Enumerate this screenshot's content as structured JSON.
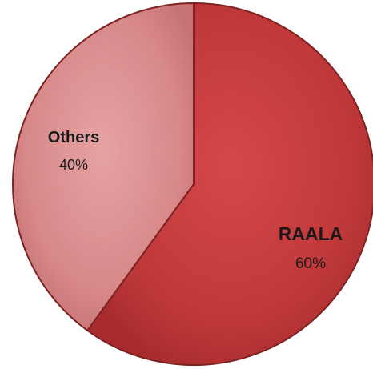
{
  "chart_data": {
    "type": "pie",
    "title": "",
    "start_angle_deg": 0,
    "direction": "clockwise",
    "slices": [
      {
        "label": "RAALA",
        "value": 60,
        "value_label": "60%",
        "color": "#C0393A"
      },
      {
        "label": "Others",
        "value": 40,
        "value_label": "40%",
        "color": "#D8898A"
      }
    ],
    "edge_color": "#7E2222",
    "legend": "none"
  }
}
